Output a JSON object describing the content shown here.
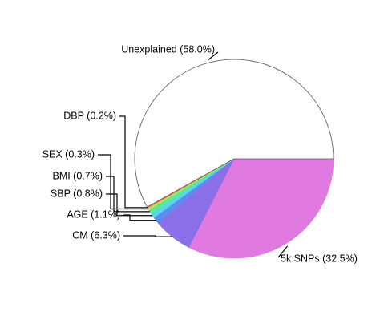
{
  "chart_data": {
    "type": "pie",
    "labels": [
      "5k SNPs (32.5%)",
      "CM (6.3%)",
      "AGE (1.1%)",
      "SBP (0.8%)",
      "BMI (0.7%)",
      "SEX (0.3%)",
      "DBP (0.2%)",
      "Unexplained (58.0%)"
    ],
    "values": [
      32.5,
      6.3,
      1.1,
      0.8,
      0.7,
      0.3,
      0.2,
      58.0
    ],
    "colors": [
      "#e07ae0",
      "#8a6fe8",
      "#5a8ff0",
      "#55d8e8",
      "#60e890",
      "#b8e85a",
      "#f07a5a",
      "#ffffff"
    ],
    "direction": "clockwise"
  }
}
